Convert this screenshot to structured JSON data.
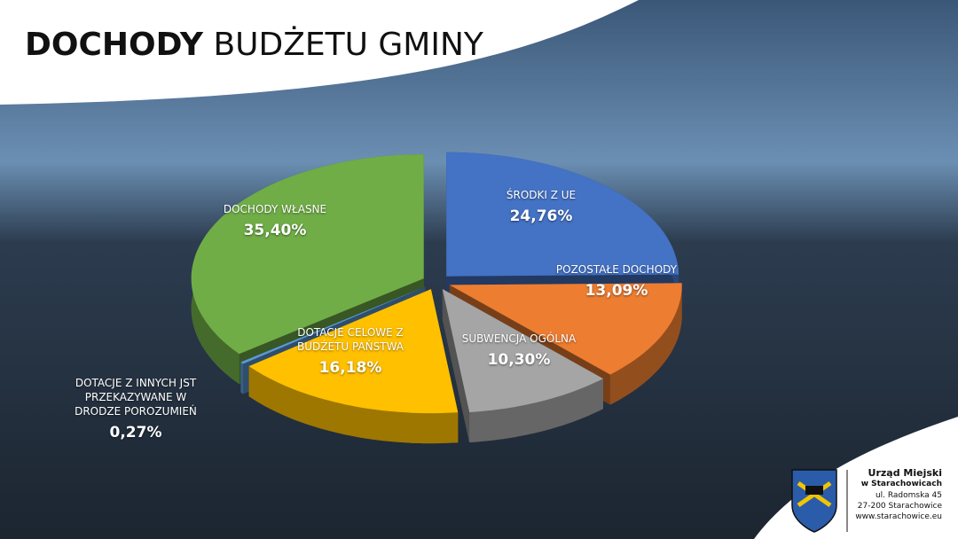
{
  "chart_data": {
    "type": "pie",
    "title_bold": "DOCHODY",
    "title_rest": "BUDŻETU GMINY",
    "categories": [
      "ŚRODKI Z UE",
      "POZOSTAŁE DOCHODY",
      "SUBWENCJA OGÓLNA",
      "DOTACJE CELOWE Z BUDŻETU PAŃSTWA",
      "DOTACJE Z INNYCH JST PRZEKAZYWANE W DRODZE POROZUMIEŃ",
      "DOCHODY WŁASNE"
    ],
    "values": [
      24.76,
      13.09,
      10.3,
      16.18,
      0.27,
      35.4
    ],
    "value_labels": [
      "24,76%",
      "13,09%",
      "10,30%",
      "16,18%",
      "0,27%",
      "35,40%"
    ],
    "colors": [
      "#4472c4",
      "#ed7d31",
      "#a5a5a5",
      "#ffc000",
      "#5b9bd5",
      "#70ad47"
    ]
  },
  "footer": {
    "name": "Urząd Miejski",
    "city": "w Starachowicach",
    "street": "ul. Radomska 45",
    "postcode": "27-200 Starachowice",
    "web": "www.starachowice.eu"
  }
}
